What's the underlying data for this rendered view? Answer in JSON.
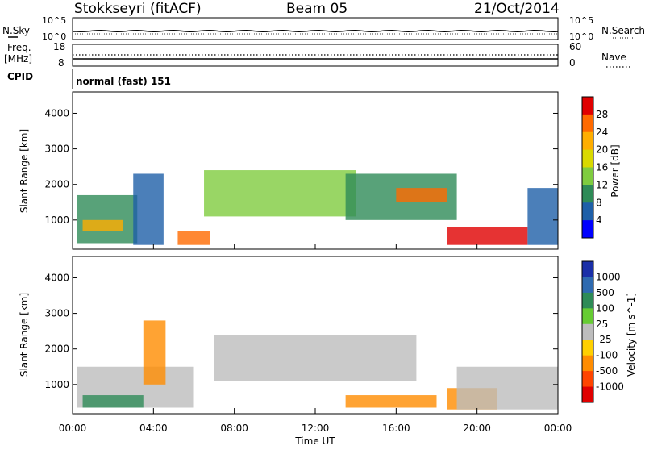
{
  "header": {
    "station": "Stokkseyri (fitACF)",
    "beam": "Beam 05",
    "date": "21/Oct/2014"
  },
  "top_panels": {
    "nsky_label": "N.Sky",
    "nsky_ticks": [
      "10^5",
      "10^0"
    ],
    "nsearch_label": "N.Search",
    "nsearch_ticks": [
      "10^5",
      "10^0"
    ],
    "freq_label_1": "Freq.",
    "freq_label_2": "[MHz]",
    "freq_ticks": [
      "18",
      "8"
    ],
    "nave_label": "Nave",
    "nave_ticks": [
      "60",
      "0"
    ],
    "cpid_label": "CPID",
    "cpid_text": "normal (fast) 151"
  },
  "chart_data": [
    {
      "type": "heatmap",
      "name": "power",
      "ylabel": "Slant Range [km]",
      "ylim": [
        180,
        4600
      ],
      "yticks": [
        1000,
        2000,
        3000,
        4000
      ],
      "x_range_hours": [
        0,
        24
      ],
      "colorbar_label": "Power [dB]",
      "colorbar_ticks": [
        "28",
        "24",
        "20",
        "16",
        "12",
        "8",
        "4"
      ],
      "colorbar_colors": [
        "#e00000",
        "#ff6a00",
        "#ffae00",
        "#d9d900",
        "#7fcc3f",
        "#2e8b57",
        "#1e5fa8",
        "#0000ff"
      ],
      "patches": [
        {
          "t0": 0.2,
          "t1": 3.2,
          "r0": 350,
          "r1": 1700,
          "c": "#2e8b57"
        },
        {
          "t0": 0.5,
          "t1": 2.5,
          "r0": 700,
          "r1": 1000,
          "c": "#ffae00"
        },
        {
          "t0": 3.0,
          "t1": 4.5,
          "r0": 300,
          "r1": 2300,
          "c": "#1e5fa8"
        },
        {
          "t0": 5.2,
          "t1": 6.8,
          "r0": 300,
          "r1": 700,
          "c": "#ff6a00"
        },
        {
          "t0": 6.5,
          "t1": 14.0,
          "r0": 1100,
          "r1": 2400,
          "c": "#7fcc3f"
        },
        {
          "t0": 13.5,
          "t1": 19.0,
          "r0": 1000,
          "r1": 2300,
          "c": "#2e8b57"
        },
        {
          "t0": 16.0,
          "t1": 18.5,
          "r0": 1500,
          "r1": 1900,
          "c": "#ff6a00"
        },
        {
          "t0": 18.5,
          "t1": 22.5,
          "r0": 300,
          "r1": 800,
          "c": "#e00000"
        },
        {
          "t0": 22.5,
          "t1": 24.0,
          "r0": 300,
          "r1": 1900,
          "c": "#1e5fa8"
        }
      ]
    },
    {
      "type": "heatmap",
      "name": "velocity",
      "ylabel": "Slant Range [km]",
      "ylim": [
        180,
        4600
      ],
      "yticks": [
        1000,
        2000,
        3000,
        4000
      ],
      "x_range_hours": [
        0,
        24
      ],
      "xticks": [
        "00:00",
        "04:00",
        "08:00",
        "12:00",
        "16:00",
        "20:00",
        "00:00"
      ],
      "xlabel": "Time UT",
      "colorbar_label": "Velocity [m s^-1]",
      "colorbar_ticks": [
        "1000",
        "500",
        "100",
        "25",
        "-25",
        "-100",
        "-500",
        "-1000"
      ],
      "colorbar_colors": [
        "#1a2fa8",
        "#2e6ab0",
        "#2e8b57",
        "#66cc33",
        "#bdbdbd",
        "#ffd000",
        "#ff8c00",
        "#ff4500",
        "#e00000"
      ],
      "patches": [
        {
          "t0": 0.2,
          "t1": 6.0,
          "r0": 350,
          "r1": 1500,
          "c": "#bdbdbd"
        },
        {
          "t0": 0.5,
          "t1": 3.5,
          "r0": 350,
          "r1": 700,
          "c": "#2e8b57"
        },
        {
          "t0": 3.5,
          "t1": 4.6,
          "r0": 1000,
          "r1": 2800,
          "c": "#ff8c00"
        },
        {
          "t0": 7.0,
          "t1": 17.0,
          "r0": 1100,
          "r1": 2400,
          "c": "#bdbdbd"
        },
        {
          "t0": 13.5,
          "t1": 18.0,
          "r0": 350,
          "r1": 700,
          "c": "#ff8c00"
        },
        {
          "t0": 18.5,
          "t1": 21.0,
          "r0": 300,
          "r1": 900,
          "c": "#ff8c00"
        },
        {
          "t0": 19.0,
          "t1": 24.0,
          "r0": 300,
          "r1": 1500,
          "c": "#bdbdbd"
        }
      ]
    }
  ]
}
